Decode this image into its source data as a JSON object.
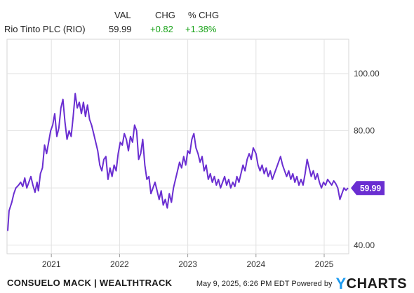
{
  "header": {
    "col_val": "VAL",
    "col_chg": "CHG",
    "col_pct": "% CHG",
    "security": "Rio Tinto PLC (RIO)",
    "value": "59.99",
    "change": "+0.82",
    "pct_change": "+1.38%",
    "positive_color": "#1aa31a"
  },
  "footer": {
    "attribution": "CONSUELO MACK | WEALTHTRACK",
    "timestamp": "May 9, 2025, 6:26 PM EDT Powered by",
    "brand_mark": "Y",
    "brand_rest": "CHARTS"
  },
  "chart_data": {
    "type": "line",
    "x_ticks": [
      "2021",
      "2022",
      "2023",
      "2024",
      "2025"
    ],
    "y_ticks": [
      "40.00",
      "60.00",
      "80.00",
      "100.00"
    ],
    "ylim": [
      37,
      112
    ],
    "xlim": [
      2020.35,
      2025.36
    ],
    "grid": true,
    "series": [
      {
        "color": "#6a2ed1",
        "last_value_label": "59.99",
        "points": [
          [
            2020.36,
            45.0
          ],
          [
            2020.38,
            52.0
          ],
          [
            2020.42,
            55.0
          ],
          [
            2020.45,
            58.0
          ],
          [
            2020.48,
            60.0
          ],
          [
            2020.52,
            61.0
          ],
          [
            2020.55,
            62.0
          ],
          [
            2020.58,
            60.5
          ],
          [
            2020.61,
            63.5
          ],
          [
            2020.64,
            60.0
          ],
          [
            2020.67,
            62.0
          ],
          [
            2020.7,
            64.0
          ],
          [
            2020.73,
            61.0
          ],
          [
            2020.76,
            58.5
          ],
          [
            2020.79,
            62.0
          ],
          [
            2020.81,
            59.0
          ],
          [
            2020.84,
            65.0
          ],
          [
            2020.87,
            67.0
          ],
          [
            2020.9,
            75.0
          ],
          [
            2020.93,
            72.0
          ],
          [
            2020.96,
            76.0
          ],
          [
            2020.99,
            80.0
          ],
          [
            2021.02,
            82.0
          ],
          [
            2021.05,
            86.0
          ],
          [
            2021.08,
            78.0
          ],
          [
            2021.11,
            81.0
          ],
          [
            2021.14,
            88.0
          ],
          [
            2021.17,
            91.0
          ],
          [
            2021.2,
            83.0
          ],
          [
            2021.23,
            77.0
          ],
          [
            2021.26,
            80.0
          ],
          [
            2021.29,
            78.0
          ],
          [
            2021.32,
            85.0
          ],
          [
            2021.35,
            93.0
          ],
          [
            2021.38,
            88.0
          ],
          [
            2021.41,
            90.0
          ],
          [
            2021.44,
            86.0
          ],
          [
            2021.47,
            90.0
          ],
          [
            2021.5,
            85.0
          ],
          [
            2021.53,
            89.0
          ],
          [
            2021.56,
            84.0
          ],
          [
            2021.59,
            82.0
          ],
          [
            2021.62,
            79.0
          ],
          [
            2021.65,
            76.0
          ],
          [
            2021.68,
            73.0
          ],
          [
            2021.71,
            68.0
          ],
          [
            2021.74,
            66.0
          ],
          [
            2021.77,
            70.0
          ],
          [
            2021.8,
            71.0
          ],
          [
            2021.83,
            63.0
          ],
          [
            2021.86,
            67.0
          ],
          [
            2021.89,
            64.0
          ],
          [
            2021.92,
            68.0
          ],
          [
            2021.95,
            66.0
          ],
          [
            2021.98,
            72.0
          ],
          [
            2022.01,
            76.0
          ],
          [
            2022.04,
            75.0
          ],
          [
            2022.07,
            79.0
          ],
          [
            2022.1,
            77.0
          ],
          [
            2022.13,
            73.0
          ],
          [
            2022.16,
            78.0
          ],
          [
            2022.19,
            76.0
          ],
          [
            2022.22,
            82.0
          ],
          [
            2022.25,
            80.0
          ],
          [
            2022.28,
            70.0
          ],
          [
            2022.31,
            72.0
          ],
          [
            2022.34,
            77.0
          ],
          [
            2022.37,
            68.0
          ],
          [
            2022.4,
            63.0
          ],
          [
            2022.43,
            64.0
          ],
          [
            2022.46,
            58.0
          ],
          [
            2022.49,
            60.0
          ],
          [
            2022.52,
            62.0
          ],
          [
            2022.55,
            59.0
          ],
          [
            2022.58,
            56.0
          ],
          [
            2022.61,
            59.0
          ],
          [
            2022.64,
            54.0
          ],
          [
            2022.67,
            56.0
          ],
          [
            2022.7,
            53.0
          ],
          [
            2022.73,
            58.0
          ],
          [
            2022.76,
            55.0
          ],
          [
            2022.79,
            60.0
          ],
          [
            2022.82,
            63.0
          ],
          [
            2022.85,
            66.0
          ],
          [
            2022.88,
            69.0
          ],
          [
            2022.91,
            67.0
          ],
          [
            2022.94,
            71.0
          ],
          [
            2022.97,
            68.0
          ],
          [
            2023.0,
            73.0
          ],
          [
            2023.03,
            72.0
          ],
          [
            2023.06,
            77.0
          ],
          [
            2023.09,
            79.0
          ],
          [
            2023.12,
            74.0
          ],
          [
            2023.15,
            72.0
          ],
          [
            2023.18,
            69.0
          ],
          [
            2023.21,
            71.0
          ],
          [
            2023.24,
            66.0
          ],
          [
            2023.27,
            68.0
          ],
          [
            2023.3,
            63.0
          ],
          [
            2023.33,
            65.0
          ],
          [
            2023.36,
            62.0
          ],
          [
            2023.39,
            64.0
          ],
          [
            2023.42,
            61.0
          ],
          [
            2023.45,
            63.0
          ],
          [
            2023.48,
            60.0
          ],
          [
            2023.51,
            62.0
          ],
          [
            2023.54,
            64.0
          ],
          [
            2023.57,
            61.0
          ],
          [
            2023.6,
            63.0
          ],
          [
            2023.63,
            60.0
          ],
          [
            2023.66,
            62.0
          ],
          [
            2023.69,
            60.5
          ],
          [
            2023.72,
            64.0
          ],
          [
            2023.75,
            62.0
          ],
          [
            2023.78,
            65.0
          ],
          [
            2023.81,
            68.0
          ],
          [
            2023.84,
            66.0
          ],
          [
            2023.87,
            70.0
          ],
          [
            2023.9,
            72.0
          ],
          [
            2023.93,
            70.0
          ],
          [
            2023.96,
            74.0
          ],
          [
            2024.0,
            72.0
          ],
          [
            2024.03,
            68.0
          ],
          [
            2024.06,
            66.0
          ],
          [
            2024.09,
            68.0
          ],
          [
            2024.12,
            65.0
          ],
          [
            2024.15,
            67.0
          ],
          [
            2024.18,
            64.0
          ],
          [
            2024.21,
            66.0
          ],
          [
            2024.24,
            63.0
          ],
          [
            2024.27,
            65.0
          ],
          [
            2024.3,
            67.0
          ],
          [
            2024.33,
            69.0
          ],
          [
            2024.36,
            71.0
          ],
          [
            2024.39,
            68.0
          ],
          [
            2024.42,
            66.0
          ],
          [
            2024.45,
            64.0
          ],
          [
            2024.48,
            66.0
          ],
          [
            2024.51,
            63.0
          ],
          [
            2024.54,
            65.0
          ],
          [
            2024.57,
            62.0
          ],
          [
            2024.6,
            64.0
          ],
          [
            2024.63,
            61.0
          ],
          [
            2024.66,
            63.0
          ],
          [
            2024.69,
            61.0
          ],
          [
            2024.72,
            65.0
          ],
          [
            2024.75,
            70.0
          ],
          [
            2024.78,
            67.0
          ],
          [
            2024.81,
            64.0
          ],
          [
            2024.84,
            66.0
          ],
          [
            2024.87,
            63.0
          ],
          [
            2024.9,
            65.0
          ],
          [
            2024.93,
            62.0
          ],
          [
            2024.96,
            60.0
          ],
          [
            2024.99,
            62.0
          ],
          [
            2025.02,
            61.0
          ],
          [
            2025.05,
            63.0
          ],
          [
            2025.08,
            62.0
          ],
          [
            2025.11,
            61.0
          ],
          [
            2025.14,
            62.5
          ],
          [
            2025.17,
            61.5
          ],
          [
            2025.2,
            60.0
          ],
          [
            2025.23,
            56.0
          ],
          [
            2025.26,
            58.0
          ],
          [
            2025.29,
            60.0
          ],
          [
            2025.32,
            59.2
          ],
          [
            2025.35,
            59.99
          ]
        ]
      }
    ]
  }
}
